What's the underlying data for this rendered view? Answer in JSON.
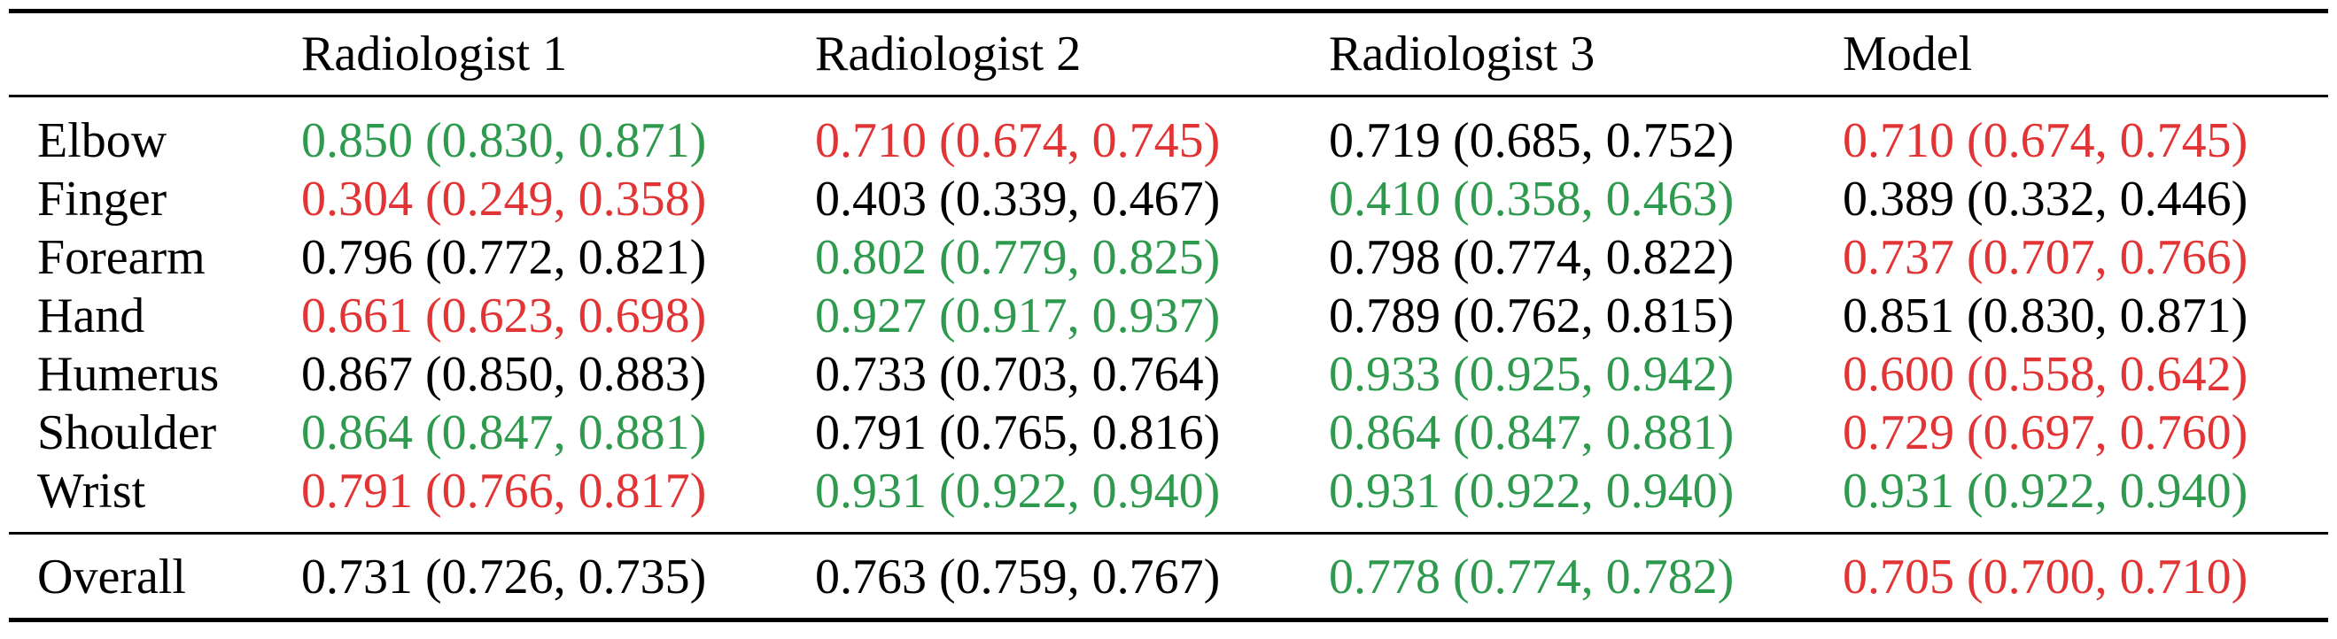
{
  "colors": {
    "best": "#2e9a4e",
    "worst": "#e23434",
    "normal": "#000000"
  },
  "columns": [
    "Radiologist 1",
    "Radiologist 2",
    "Radiologist 3",
    "Model"
  ],
  "rows": [
    {
      "label": "Elbow",
      "cells": [
        {
          "text": "0.850 (0.830, 0.871)",
          "status": "best"
        },
        {
          "text": "0.710 (0.674, 0.745)",
          "status": "worst"
        },
        {
          "text": "0.719 (0.685, 0.752)",
          "status": "normal"
        },
        {
          "text": "0.710 (0.674, 0.745)",
          "status": "worst"
        }
      ]
    },
    {
      "label": "Finger",
      "cells": [
        {
          "text": "0.304 (0.249, 0.358)",
          "status": "worst"
        },
        {
          "text": "0.403 (0.339, 0.467)",
          "status": "normal"
        },
        {
          "text": "0.410 (0.358, 0.463)",
          "status": "best"
        },
        {
          "text": "0.389 (0.332, 0.446)",
          "status": "normal"
        }
      ]
    },
    {
      "label": "Forearm",
      "cells": [
        {
          "text": "0.796 (0.772, 0.821)",
          "status": "normal"
        },
        {
          "text": "0.802 (0.779, 0.825)",
          "status": "best"
        },
        {
          "text": "0.798 (0.774, 0.822)",
          "status": "normal"
        },
        {
          "text": "0.737 (0.707, 0.766)",
          "status": "worst"
        }
      ]
    },
    {
      "label": "Hand",
      "cells": [
        {
          "text": "0.661 (0.623, 0.698)",
          "status": "worst"
        },
        {
          "text": "0.927 (0.917, 0.937)",
          "status": "best"
        },
        {
          "text": "0.789 (0.762, 0.815)",
          "status": "normal"
        },
        {
          "text": "0.851 (0.830, 0.871)",
          "status": "normal"
        }
      ]
    },
    {
      "label": "Humerus",
      "cells": [
        {
          "text": "0.867 (0.850, 0.883)",
          "status": "normal"
        },
        {
          "text": "0.733 (0.703, 0.764)",
          "status": "normal"
        },
        {
          "text": "0.933 (0.925, 0.942)",
          "status": "best"
        },
        {
          "text": "0.600 (0.558, 0.642)",
          "status": "worst"
        }
      ]
    },
    {
      "label": "Shoulder",
      "cells": [
        {
          "text": "0.864 (0.847, 0.881)",
          "status": "best"
        },
        {
          "text": "0.791 (0.765, 0.816)",
          "status": "normal"
        },
        {
          "text": "0.864 (0.847, 0.881)",
          "status": "best"
        },
        {
          "text": "0.729 (0.697, 0.760)",
          "status": "worst"
        }
      ]
    },
    {
      "label": "Wrist",
      "cells": [
        {
          "text": "0.791 (0.766, 0.817)",
          "status": "worst"
        },
        {
          "text": "0.931 (0.922, 0.940)",
          "status": "best"
        },
        {
          "text": "0.931 (0.922, 0.940)",
          "status": "best"
        },
        {
          "text": "0.931 (0.922, 0.940)",
          "status": "best"
        }
      ]
    }
  ],
  "overall": {
    "label": "Overall",
    "cells": [
      {
        "text": "0.731 (0.726, 0.735)",
        "status": "normal"
      },
      {
        "text": "0.763 (0.759, 0.767)",
        "status": "normal"
      },
      {
        "text": "0.778 (0.774, 0.782)",
        "status": "best"
      },
      {
        "text": "0.705 (0.700, 0.710)",
        "status": "worst"
      }
    ]
  }
}
